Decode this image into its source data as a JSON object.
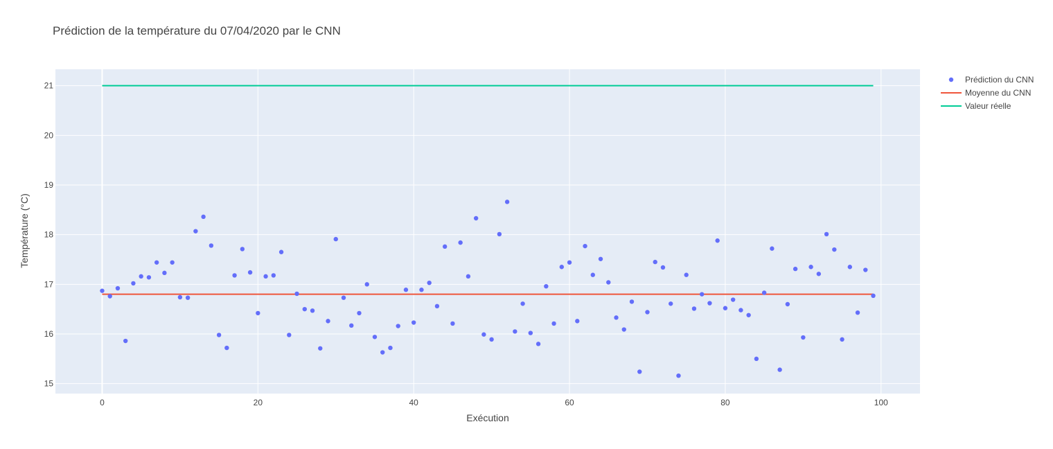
{
  "chart_data": {
    "type": "scatter",
    "title": "Prédiction de la température du 07/04/2020 par le CNN",
    "xlabel": "Exécution",
    "ylabel": "Température (°C)",
    "xlim": [
      -6,
      105
    ],
    "ylim": [
      14.8,
      21.33
    ],
    "x_ticks": [
      0,
      20,
      40,
      60,
      80,
      100
    ],
    "y_ticks": [
      15,
      16,
      17,
      18,
      19,
      20,
      21
    ],
    "grid": true,
    "legend_position": "top-right",
    "colors": {
      "plot_background": "#e5ecf6",
      "grid": "#ffffff",
      "scatter": "#636efa",
      "mean": "#ef553b",
      "real": "#00cc96"
    },
    "series": [
      {
        "name": "Prédiction du CNN",
        "mode": "markers",
        "x": [
          0,
          1,
          2,
          3,
          4,
          5,
          6,
          7,
          8,
          9,
          10,
          11,
          12,
          13,
          14,
          15,
          16,
          17,
          18,
          19,
          20,
          21,
          22,
          23,
          24,
          25,
          26,
          27,
          28,
          29,
          30,
          31,
          32,
          33,
          34,
          35,
          36,
          37,
          38,
          39,
          40,
          41,
          42,
          43,
          44,
          45,
          46,
          47,
          48,
          49,
          50,
          51,
          52,
          53,
          54,
          55,
          56,
          57,
          58,
          59,
          60,
          61,
          62,
          63,
          64,
          65,
          66,
          67,
          68,
          69,
          70,
          71,
          72,
          73,
          74,
          75,
          76,
          77,
          78,
          79,
          80,
          81,
          82,
          83,
          84,
          85,
          86,
          87,
          88,
          89,
          90,
          91,
          92,
          93,
          94,
          95,
          96,
          97,
          98,
          99
        ],
        "y": [
          16.87,
          16.76,
          16.92,
          15.86,
          17.02,
          17.16,
          17.14,
          17.44,
          17.23,
          17.44,
          16.74,
          16.73,
          18.07,
          18.36,
          17.78,
          15.98,
          15.72,
          17.18,
          17.71,
          17.24,
          16.42,
          17.16,
          17.18,
          17.65,
          15.98,
          16.81,
          16.5,
          16.47,
          15.71,
          16.26,
          17.91,
          16.73,
          16.17,
          16.42,
          17.0,
          15.94,
          15.63,
          15.72,
          16.16,
          16.89,
          16.23,
          16.89,
          17.03,
          16.56,
          17.76,
          16.21,
          17.84,
          17.16,
          18.33,
          15.99,
          15.89,
          18.01,
          18.66,
          16.05,
          16.61,
          16.02,
          15.8,
          16.96,
          16.21,
          17.35,
          17.44,
          16.26,
          17.77,
          17.19,
          17.51,
          17.04,
          16.33,
          16.09,
          16.65,
          15.24,
          16.44,
          17.45,
          17.34,
          16.61,
          15.16,
          17.19,
          16.51,
          16.8,
          16.62,
          17.88,
          16.52,
          16.69,
          16.48,
          16.38,
          15.5,
          16.83,
          17.72,
          15.28,
          16.6,
          17.31,
          15.93,
          17.35,
          17.21,
          18.01,
          17.7,
          15.89,
          17.35,
          16.43,
          17.29,
          16.77
        ]
      },
      {
        "name": "Moyenne du CNN",
        "mode": "lines",
        "x": [
          0,
          99
        ],
        "y": [
          16.8,
          16.8
        ]
      },
      {
        "name": "Valeur réelle",
        "mode": "lines",
        "x": [
          0,
          99
        ],
        "y": [
          21.0,
          21.0
        ]
      }
    ]
  }
}
